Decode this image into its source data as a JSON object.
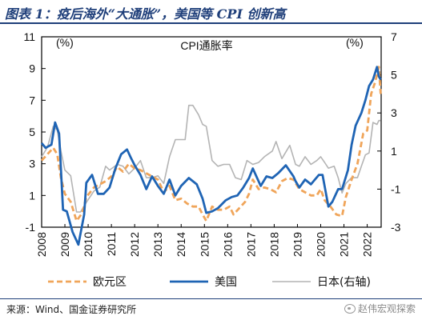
{
  "figure": {
    "title": "图表 1：疫后海外“大通胀”，美国等 CPI 创新高",
    "source": "来源：Wind、国金证券研究所",
    "watermark": "赵伟宏观探索"
  },
  "chart_data": {
    "type": "line",
    "chart_title": "CPI通胀率",
    "left_unit": "(%)",
    "right_unit": "(%)",
    "y_left": {
      "min": -1,
      "max": 11,
      "ticks": [
        -1,
        1,
        3,
        5,
        7,
        9,
        11
      ]
    },
    "y_right": {
      "min": -3,
      "max": 7,
      "ticks": [
        -3,
        -1,
        1,
        3,
        5,
        7
      ]
    },
    "x_ticks": [
      "2008",
      "2009",
      "2010",
      "2011",
      "2012",
      "2013",
      "2014",
      "2015",
      "2016",
      "2017",
      "2018",
      "2019",
      "2020",
      "2021",
      "2022"
    ],
    "x_range": [
      2008,
      2022.6
    ],
    "grid": false,
    "legend_position": "bottom",
    "series": [
      {
        "name": "欧元区",
        "axis": "left",
        "color": "#f0a55a",
        "style": "dashed",
        "points": [
          [
            2008.0,
            3.2
          ],
          [
            2008.25,
            3.6
          ],
          [
            2008.5,
            4.0
          ],
          [
            2008.67,
            3.6
          ],
          [
            2008.83,
            2.1
          ],
          [
            2009.0,
            1.1
          ],
          [
            2009.25,
            0.6
          ],
          [
            2009.5,
            -0.6
          ],
          [
            2009.75,
            -0.1
          ],
          [
            2009.92,
            0.9
          ],
          [
            2010.25,
            1.5
          ],
          [
            2010.5,
            1.7
          ],
          [
            2010.75,
            1.9
          ],
          [
            2011.0,
            2.2
          ],
          [
            2011.25,
            2.8
          ],
          [
            2011.5,
            2.5
          ],
          [
            2011.75,
            3.0
          ],
          [
            2012.0,
            2.7
          ],
          [
            2012.25,
            2.6
          ],
          [
            2012.5,
            2.4
          ],
          [
            2012.75,
            2.2
          ],
          [
            2013.0,
            2.0
          ],
          [
            2013.25,
            1.2
          ],
          [
            2013.5,
            1.6
          ],
          [
            2013.75,
            0.7
          ],
          [
            2014.0,
            0.8
          ],
          [
            2014.25,
            0.5
          ],
          [
            2014.5,
            0.3
          ],
          [
            2014.75,
            0.3
          ],
          [
            2014.92,
            -0.2
          ],
          [
            2015.08,
            -0.6
          ],
          [
            2015.33,
            0.3
          ],
          [
            2015.58,
            0.1
          ],
          [
            2015.83,
            0.1
          ],
          [
            2016.08,
            0.3
          ],
          [
            2016.25,
            -0.2
          ],
          [
            2016.5,
            0.2
          ],
          [
            2016.75,
            0.6
          ],
          [
            2016.92,
            1.1
          ],
          [
            2017.08,
            2.0
          ],
          [
            2017.33,
            1.4
          ],
          [
            2017.58,
            1.5
          ],
          [
            2017.83,
            1.4
          ],
          [
            2018.08,
            1.2
          ],
          [
            2018.33,
            1.9
          ],
          [
            2018.58,
            2.1
          ],
          [
            2018.83,
            2.0
          ],
          [
            2019.08,
            1.4
          ],
          [
            2019.33,
            1.2
          ],
          [
            2019.58,
            1.0
          ],
          [
            2019.83,
            1.0
          ],
          [
            2020.0,
            1.4
          ],
          [
            2020.17,
            0.7
          ],
          [
            2020.42,
            0.3
          ],
          [
            2020.67,
            -0.2
          ],
          [
            2020.92,
            -0.3
          ],
          [
            2021.08,
            0.9
          ],
          [
            2021.33,
            2.0
          ],
          [
            2021.58,
            3.0
          ],
          [
            2021.83,
            4.9
          ],
          [
            2022.0,
            5.1
          ],
          [
            2022.17,
            7.4
          ],
          [
            2022.33,
            8.1
          ],
          [
            2022.42,
            8.6
          ],
          [
            2022.5,
            9.1
          ],
          [
            2022.58,
            7.4
          ]
        ]
      },
      {
        "name": "美国",
        "axis": "left",
        "color": "#1f64b4",
        "style": "solid",
        "points": [
          [
            2008.0,
            4.3
          ],
          [
            2008.17,
            4.0
          ],
          [
            2008.42,
            4.2
          ],
          [
            2008.58,
            5.6
          ],
          [
            2008.75,
            4.9
          ],
          [
            2008.92,
            0.1
          ],
          [
            2009.08,
            0.0
          ],
          [
            2009.33,
            -1.3
          ],
          [
            2009.58,
            -2.1
          ],
          [
            2009.83,
            -0.2
          ],
          [
            2009.92,
            1.8
          ],
          [
            2010.17,
            2.3
          ],
          [
            2010.42,
            1.1
          ],
          [
            2010.67,
            1.1
          ],
          [
            2010.92,
            1.5
          ],
          [
            2011.17,
            2.7
          ],
          [
            2011.42,
            3.6
          ],
          [
            2011.67,
            3.9
          ],
          [
            2011.83,
            3.4
          ],
          [
            2012.0,
            2.9
          ],
          [
            2012.25,
            2.3
          ],
          [
            2012.5,
            1.4
          ],
          [
            2012.75,
            2.2
          ],
          [
            2013.0,
            1.6
          ],
          [
            2013.25,
            1.1
          ],
          [
            2013.5,
            2.0
          ],
          [
            2013.75,
            1.0
          ],
          [
            2014.0,
            1.6
          ],
          [
            2014.33,
            2.1
          ],
          [
            2014.67,
            1.7
          ],
          [
            2014.92,
            0.8
          ],
          [
            2015.08,
            -0.1
          ],
          [
            2015.33,
            0.0
          ],
          [
            2015.58,
            0.2
          ],
          [
            2015.92,
            0.7
          ],
          [
            2016.17,
            0.9
          ],
          [
            2016.42,
            1.0
          ],
          [
            2016.67,
            1.5
          ],
          [
            2016.92,
            2.1
          ],
          [
            2017.08,
            2.7
          ],
          [
            2017.42,
            1.6
          ],
          [
            2017.67,
            2.2
          ],
          [
            2017.92,
            2.1
          ],
          [
            2018.17,
            2.4
          ],
          [
            2018.5,
            2.9
          ],
          [
            2018.83,
            2.2
          ],
          [
            2018.92,
            1.9
          ],
          [
            2019.08,
            1.5
          ],
          [
            2019.33,
            2.0
          ],
          [
            2019.58,
            1.7
          ],
          [
            2019.92,
            2.3
          ],
          [
            2020.08,
            2.3
          ],
          [
            2020.33,
            0.3
          ],
          [
            2020.5,
            0.6
          ],
          [
            2020.75,
            1.4
          ],
          [
            2020.92,
            1.4
          ],
          [
            2021.17,
            2.6
          ],
          [
            2021.33,
            4.2
          ],
          [
            2021.5,
            5.4
          ],
          [
            2021.75,
            6.2
          ],
          [
            2021.92,
            7.0
          ],
          [
            2022.08,
            7.9
          ],
          [
            2022.25,
            8.3
          ],
          [
            2022.42,
            9.1
          ],
          [
            2022.5,
            8.5
          ],
          [
            2022.58,
            8.3
          ]
        ]
      },
      {
        "name": "日本(右轴)",
        "axis": "right",
        "color": "#b4b4b4",
        "style": "solid",
        "points": [
          [
            2008.0,
            0.7
          ],
          [
            2008.25,
            1.2
          ],
          [
            2008.5,
            2.3
          ],
          [
            2008.67,
            2.1
          ],
          [
            2008.83,
            1.0
          ],
          [
            2009.0,
            0.0
          ],
          [
            2009.25,
            -0.3
          ],
          [
            2009.5,
            -2.2
          ],
          [
            2009.67,
            -2.2
          ],
          [
            2009.92,
            -1.7
          ],
          [
            2010.25,
            -1.1
          ],
          [
            2010.5,
            -0.9
          ],
          [
            2010.75,
            0.2
          ],
          [
            2010.92,
            0.0
          ],
          [
            2011.25,
            0.3
          ],
          [
            2011.5,
            0.2
          ],
          [
            2011.75,
            -0.2
          ],
          [
            2012.0,
            0.1
          ],
          [
            2012.25,
            0.5
          ],
          [
            2012.5,
            -0.4
          ],
          [
            2012.75,
            -0.4
          ],
          [
            2013.0,
            -0.3
          ],
          [
            2013.25,
            -0.7
          ],
          [
            2013.5,
            0.7
          ],
          [
            2013.75,
            1.6
          ],
          [
            2013.92,
            1.6
          ],
          [
            2014.17,
            1.6
          ],
          [
            2014.33,
            3.4
          ],
          [
            2014.5,
            3.4
          ],
          [
            2014.75,
            2.9
          ],
          [
            2014.92,
            2.4
          ],
          [
            2015.08,
            2.3
          ],
          [
            2015.33,
            0.5
          ],
          [
            2015.58,
            0.2
          ],
          [
            2015.83,
            0.3
          ],
          [
            2016.08,
            0.3
          ],
          [
            2016.33,
            -0.4
          ],
          [
            2016.58,
            -0.5
          ],
          [
            2016.83,
            0.5
          ],
          [
            2017.08,
            0.3
          ],
          [
            2017.33,
            0.4
          ],
          [
            2017.58,
            0.7
          ],
          [
            2017.92,
            1.0
          ],
          [
            2018.08,
            1.5
          ],
          [
            2018.33,
            0.6
          ],
          [
            2018.67,
            1.3
          ],
          [
            2018.92,
            0.3
          ],
          [
            2019.08,
            0.2
          ],
          [
            2019.33,
            0.7
          ],
          [
            2019.58,
            0.3
          ],
          [
            2019.83,
            0.5
          ],
          [
            2020.0,
            0.7
          ],
          [
            2020.17,
            0.4
          ],
          [
            2020.33,
            0.1
          ],
          [
            2020.58,
            0.2
          ],
          [
            2020.75,
            -0.4
          ],
          [
            2020.92,
            -1.2
          ],
          [
            2021.08,
            -0.7
          ],
          [
            2021.33,
            -0.4
          ],
          [
            2021.58,
            -0.4
          ],
          [
            2021.75,
            0.2
          ],
          [
            2021.92,
            0.8
          ],
          [
            2022.08,
            0.9
          ],
          [
            2022.25,
            2.5
          ],
          [
            2022.42,
            2.4
          ],
          [
            2022.5,
            2.6
          ],
          [
            2022.58,
            2.6
          ]
        ]
      }
    ]
  }
}
